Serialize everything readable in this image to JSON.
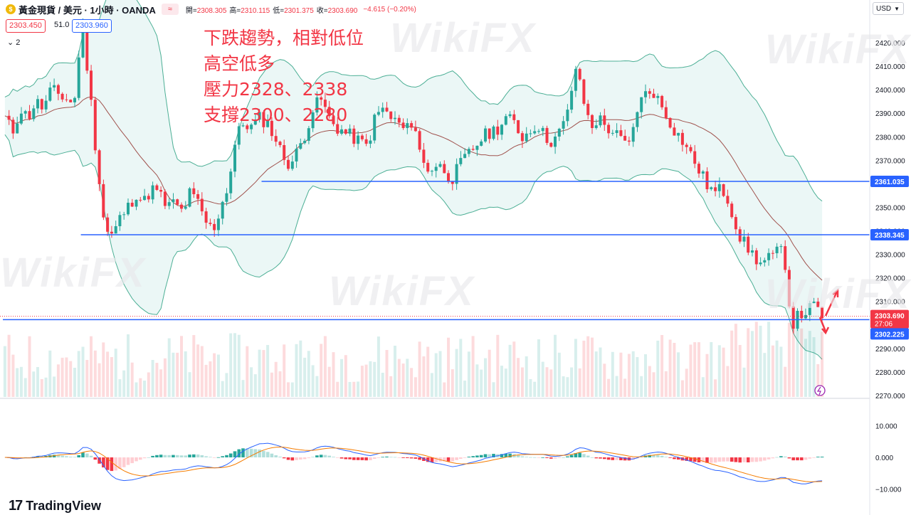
{
  "header": {
    "symbol": "黃金現貨 / 美元 · 1小時 · OANDA",
    "ohlc_badge": "≈",
    "open_label": "開=",
    "open": "2308.305",
    "high_label": "高=",
    "high": "2310.115",
    "low_label": "低=",
    "low": "2301.375",
    "close_label": "收=",
    "close": "2303.690",
    "change": "−4.615 (−0.20%)"
  },
  "quote": {
    "bid": "2303.450",
    "spread": "51.0",
    "ask": "2303.960"
  },
  "collapse_label": "2",
  "currency_selector": "USD",
  "annotation": [
    "下跌趨勢，相對低位",
    "高空低多",
    "壓力2328、2338",
    "支撐2300、2280"
  ],
  "watermark": "WikiFX",
  "branding": "TradingView",
  "colors": {
    "up": "#26a69a",
    "down": "#f23645",
    "bb_fill": "#e3f4f2",
    "bb_line": "#4caf95",
    "basis": "#a0524d",
    "level": "#2962ff",
    "macd": "#2962ff",
    "signal": "#f57c00"
  },
  "chart_data": {
    "type": "candlestick",
    "title": "黃金現貨 / 美元 · 1小時 · OANDA",
    "ylim": [
      2268,
      2432
    ],
    "y_ticks": [
      2420,
      2410,
      2400,
      2390,
      2380,
      2370,
      2360,
      2350,
      2340,
      2330,
      2320,
      2310,
      2300,
      2290,
      2280,
      2270
    ],
    "y_tick_labels": [
      "2420.000",
      "2410.000",
      "2400.000",
      "2390.000",
      "2380.000",
      "2370.000",
      "2360.000",
      "2350.000",
      "2340.000",
      "2330.000",
      "2320.000",
      "2310.000",
      "2300.000",
      "2290.000",
      "2280.000",
      "2270.000"
    ],
    "series_anchor": [
      2388,
      2382,
      2392,
      2388,
      2395,
      2392,
      2400,
      2398,
      2396,
      2394,
      2430,
      2400,
      2368,
      2340,
      2338,
      2346,
      2350,
      2356,
      2352,
      2358,
      2356,
      2350,
      2352,
      2348,
      2356,
      2352,
      2344,
      2340,
      2350,
      2360,
      2380,
      2386,
      2384,
      2388,
      2386,
      2380,
      2372,
      2368,
      2374,
      2382,
      2392,
      2396,
      2388,
      2384,
      2382,
      2380,
      2378,
      2376,
      2388,
      2392,
      2388,
      2386,
      2382,
      2388,
      2370,
      2366,
      2368,
      2366,
      2362,
      2368,
      2372,
      2376,
      2380,
      2382,
      2384,
      2388,
      2386,
      2380,
      2382,
      2386,
      2380,
      2378,
      2382,
      2390,
      2410,
      2396,
      2384,
      2388,
      2384,
      2382,
      2378,
      2376,
      2392,
      2398,
      2400,
      2394,
      2388,
      2382,
      2378,
      2372,
      2366,
      2360,
      2356,
      2358,
      2352,
      2340,
      2334,
      2330,
      2326,
      2328,
      2330,
      2333,
      2300,
      2304,
      2306,
      2308,
      2304
    ],
    "horizontal_levels": [
      {
        "price": 2361.035,
        "label": "2361.035"
      },
      {
        "price": 2338.345,
        "label": "2338.345"
      },
      {
        "price": 2302.225,
        "label": "2302.225"
      }
    ],
    "last_price": {
      "price": 2303.69,
      "label": "2303.690",
      "countdown": "27:06"
    },
    "macd": {
      "y_ticks": [
        10,
        0,
        -10
      ],
      "y_tick_labels": [
        "10.000",
        "0.000",
        "−10.000"
      ]
    }
  }
}
